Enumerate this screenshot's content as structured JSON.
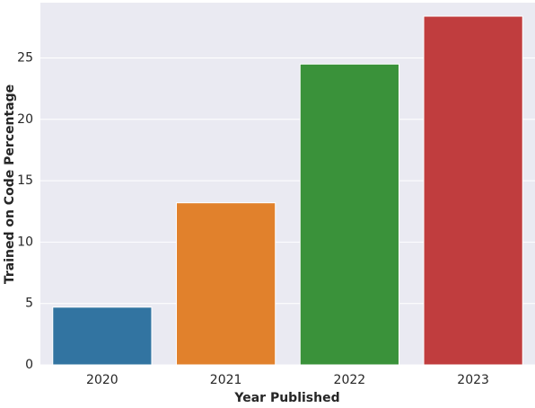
{
  "chart_data": {
    "type": "bar",
    "xlabel": "Year Published",
    "ylabel": "Trained on Code Percentage",
    "categories": [
      "2020",
      "2021",
      "2022",
      "2023"
    ],
    "values": [
      4.7,
      13.2,
      24.5,
      28.4
    ],
    "colors": [
      "#3274a1",
      "#e1812c",
      "#3a923a",
      "#c03d3e"
    ],
    "ylim": [
      0,
      29.5
    ],
    "yticks": [
      0,
      5,
      10,
      15,
      20,
      25
    ],
    "grid": true
  }
}
